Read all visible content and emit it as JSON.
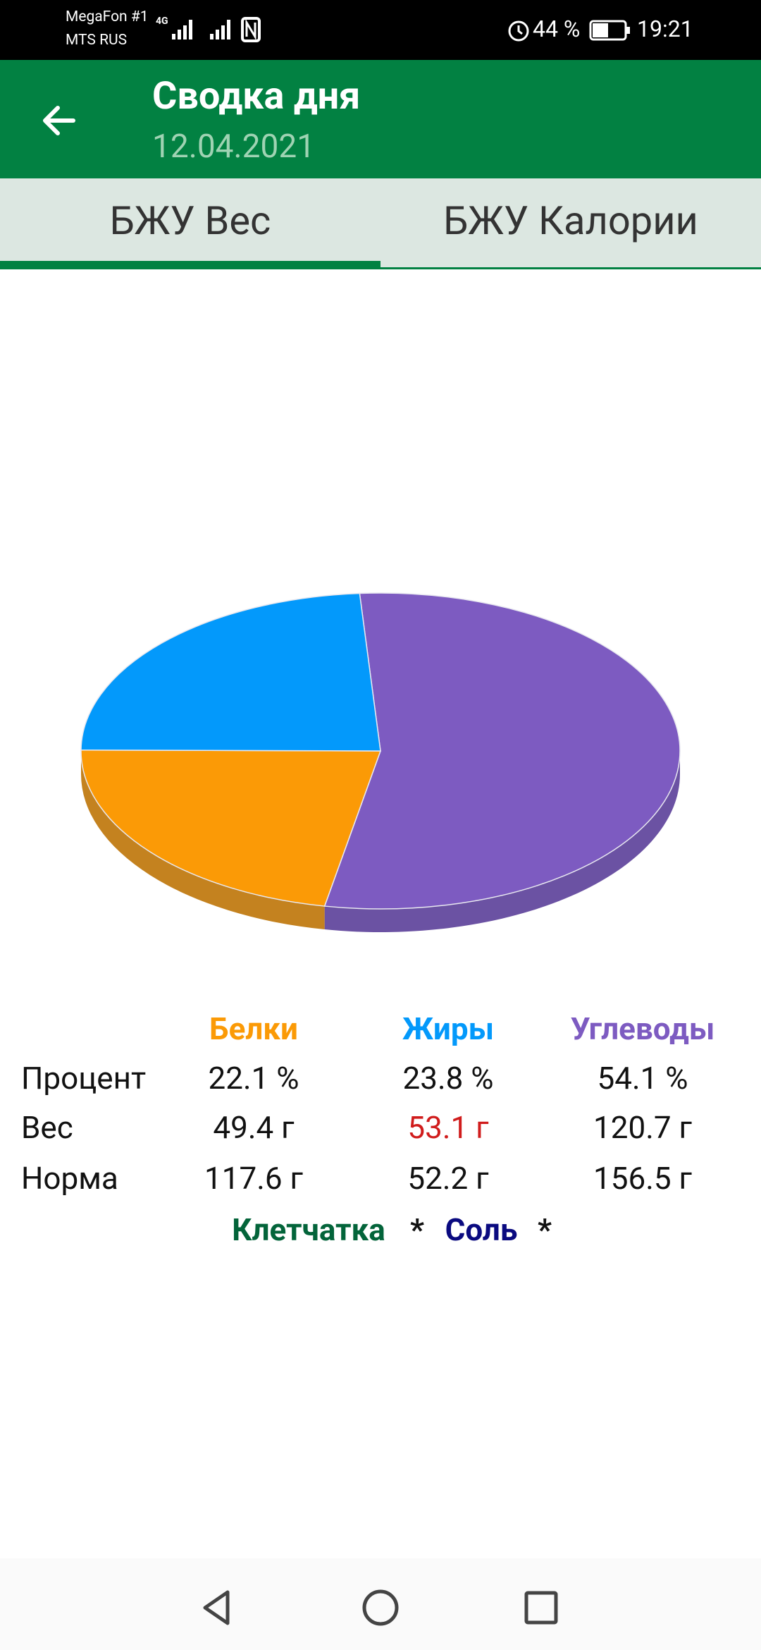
{
  "status_bar": {
    "carrier1": "MegaFon #1",
    "carrier2": "MTS RUS",
    "network": "4G",
    "battery": "44 %",
    "time": "19:21"
  },
  "header": {
    "title": "Сводка дня",
    "date": "12.04.2021"
  },
  "tabs": [
    "БЖУ Вес",
    "БЖУ Калории"
  ],
  "pie": {
    "type": "pie",
    "values": [
      22.1,
      23.8,
      54.1
    ],
    "colors": [
      "#fb9a06",
      "#0399fb",
      "#7d5bc1"
    ],
    "side_colors": [
      "#c4821f",
      "#0277c4",
      "#6b52a3"
    ]
  },
  "table": {
    "columns": [
      "Белки",
      "Жиры",
      "Углеводы"
    ],
    "column_colors": [
      "#fb9a06",
      "#0399fb",
      "#7d5bc1"
    ],
    "rows": [
      [
        "Процент",
        "22.1 %",
        "23.8 %",
        "54.1 %"
      ],
      [
        "Вес",
        "49.4 г",
        "53.1 г",
        "120.7 г"
      ],
      [
        "Норма",
        "117.6 г",
        "52.2 г",
        "156.5 г"
      ]
    ]
  },
  "footer": {
    "fiber": "Клетчатка",
    "fiber_mark": "*",
    "salt": "Соль",
    "salt_mark": "*"
  }
}
